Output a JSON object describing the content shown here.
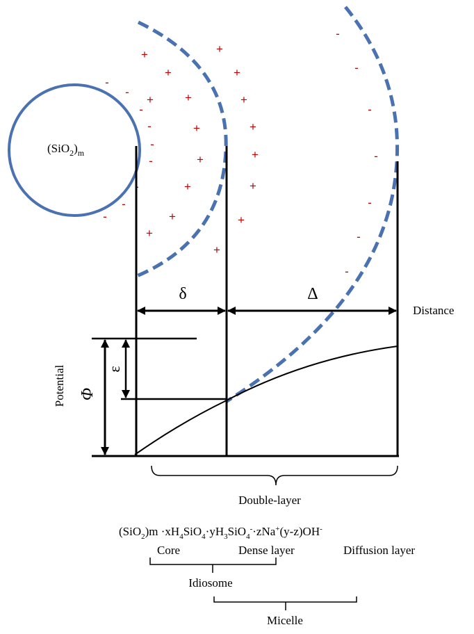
{
  "labels": {
    "core_formula": {
      "base": "(SiO",
      "sub": "2",
      "tail": ")",
      "sub2": "m"
    },
    "delta": "δ",
    "big_delta": "Δ",
    "distance": "Distance",
    "potential": "Potential",
    "phi": "Φ",
    "epsilon": "ε",
    "double_layer": "Double-layer",
    "core": "Core",
    "dense_layer": "Dense layer",
    "diffusion_layer": "Diffusion layer",
    "idiosome": "Idiosome",
    "micelle": "Micelle"
  },
  "micelle_formula": {
    "p1": "(SiO",
    "s1": "2",
    "p2": ")m ·xH",
    "s2": "4",
    "p3": "SiO",
    "s3": "4",
    "p4": "·yH",
    "s4": "3",
    "p5": "SiO",
    "s5": "4",
    "sup1": "-",
    "p6": "·zNa",
    "sup2": "+",
    "p7": "(y-z)OH",
    "sup3": "-"
  },
  "ions": {
    "positive": "+",
    "negative": "-"
  },
  "colors": {
    "circle": "#4a72b0",
    "ion": "#c00000",
    "line": "#000000"
  }
}
